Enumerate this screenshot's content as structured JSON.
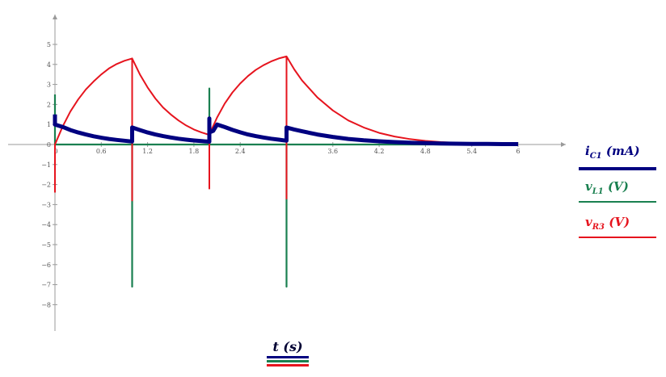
{
  "chart_data": {
    "type": "line",
    "xlim": [
      0,
      6
    ],
    "ylim": [
      -9.3,
      6.4
    ],
    "x_ticks": [
      0.6,
      1.2,
      1.8,
      2.4,
      3.6,
      4.2,
      4.8,
      5.4,
      6
    ],
    "x_tick_labels": [
      "0.6",
      "1.2",
      "1.8",
      "2.4",
      "3.6",
      "4.2",
      "4.8",
      "5.4",
      "6"
    ],
    "y_ticks": [
      5,
      4,
      3,
      2,
      1,
      0,
      -1,
      -2,
      -3,
      -4,
      -5,
      -6,
      -7,
      -8
    ],
    "y_tick_labels": [
      "5",
      "4",
      "3",
      "2",
      "1",
      "0",
      "−1",
      "−2",
      "−3",
      "−4",
      "−5",
      "−6",
      "−7",
      "−8"
    ],
    "origin_label": "0",
    "grid": false,
    "legend_position": "right",
    "xlabel": {
      "var": "t",
      "unit": "s"
    },
    "series": [
      {
        "name_var": "i",
        "name_sub": "C1",
        "unit": "mA",
        "color": "#000080",
        "points": [
          [
            0,
            1.5
          ],
          [
            0,
            1.0
          ],
          [
            0.1,
            0.88
          ],
          [
            0.2,
            0.72
          ],
          [
            0.3,
            0.6
          ],
          [
            0.4,
            0.5
          ],
          [
            0.5,
            0.41
          ],
          [
            0.6,
            0.34
          ],
          [
            0.7,
            0.28
          ],
          [
            0.8,
            0.23
          ],
          [
            0.9,
            0.19
          ],
          [
            1.0,
            0.15
          ],
          [
            1.0,
            0.85
          ],
          [
            1.1,
            0.72
          ],
          [
            1.2,
            0.6
          ],
          [
            1.3,
            0.5
          ],
          [
            1.4,
            0.42
          ],
          [
            1.5,
            0.35
          ],
          [
            1.6,
            0.29
          ],
          [
            1.7,
            0.24
          ],
          [
            1.8,
            0.2
          ],
          [
            1.9,
            0.17
          ],
          [
            2.0,
            0.14
          ],
          [
            2.0,
            1.3
          ],
          [
            2.0,
            0.6
          ],
          [
            2.05,
            0.68
          ],
          [
            2.1,
            1.0
          ],
          [
            2.2,
            0.87
          ],
          [
            2.3,
            0.73
          ],
          [
            2.4,
            0.61
          ],
          [
            2.5,
            0.5
          ],
          [
            2.6,
            0.42
          ],
          [
            2.7,
            0.35
          ],
          [
            2.8,
            0.29
          ],
          [
            2.9,
            0.24
          ],
          [
            3.0,
            0.19
          ],
          [
            3.0,
            0.85
          ],
          [
            3.1,
            0.75
          ],
          [
            3.2,
            0.66
          ],
          [
            3.4,
            0.5
          ],
          [
            3.6,
            0.38
          ],
          [
            3.8,
            0.28
          ],
          [
            4.0,
            0.21
          ],
          [
            4.2,
            0.16
          ],
          [
            4.4,
            0.12
          ],
          [
            4.6,
            0.09
          ],
          [
            4.8,
            0.07
          ],
          [
            5.0,
            0.05
          ],
          [
            5.2,
            0.04
          ],
          [
            5.4,
            0.03
          ],
          [
            5.6,
            0.03
          ],
          [
            5.8,
            0.02
          ],
          [
            6.0,
            0.02
          ]
        ]
      },
      {
        "name_var": "v",
        "name_sub": "L1",
        "unit": "V",
        "color": "#1a8050",
        "points": [
          [
            0,
            2.5
          ],
          [
            0,
            0
          ],
          [
            1.0,
            0
          ],
          [
            1.0,
            -7.1
          ],
          [
            1.0,
            0
          ],
          [
            2.0,
            0
          ],
          [
            2.0,
            2.8
          ],
          [
            2.0,
            0
          ],
          [
            3.0,
            0
          ],
          [
            3.0,
            -7.1
          ],
          [
            3.0,
            0
          ],
          [
            6.0,
            0
          ]
        ]
      },
      {
        "name_var": "v",
        "name_sub": "R3",
        "unit": "V",
        "color": "#e6141e",
        "points": [
          [
            0,
            -2.4
          ],
          [
            0,
            0
          ],
          [
            0.1,
            0.9
          ],
          [
            0.2,
            1.65
          ],
          [
            0.3,
            2.25
          ],
          [
            0.4,
            2.75
          ],
          [
            0.5,
            3.15
          ],
          [
            0.6,
            3.5
          ],
          [
            0.7,
            3.8
          ],
          [
            0.8,
            4.02
          ],
          [
            0.9,
            4.18
          ],
          [
            1.0,
            4.3
          ],
          [
            1.0,
            -2.8
          ],
          [
            1.0,
            4.3
          ],
          [
            1.1,
            3.5
          ],
          [
            1.2,
            2.85
          ],
          [
            1.3,
            2.3
          ],
          [
            1.4,
            1.85
          ],
          [
            1.5,
            1.5
          ],
          [
            1.6,
            1.2
          ],
          [
            1.7,
            0.95
          ],
          [
            1.8,
            0.75
          ],
          [
            1.9,
            0.6
          ],
          [
            2.0,
            0.48
          ],
          [
            2.0,
            -2.2
          ],
          [
            2.0,
            0.5
          ],
          [
            2.1,
            1.35
          ],
          [
            2.2,
            2.05
          ],
          [
            2.3,
            2.6
          ],
          [
            2.4,
            3.05
          ],
          [
            2.5,
            3.42
          ],
          [
            2.6,
            3.72
          ],
          [
            2.7,
            3.96
          ],
          [
            2.8,
            4.15
          ],
          [
            2.9,
            4.3
          ],
          [
            3.0,
            4.4
          ],
          [
            3.0,
            -2.7
          ],
          [
            3.0,
            4.4
          ],
          [
            3.1,
            3.75
          ],
          [
            3.2,
            3.2
          ],
          [
            3.4,
            2.35
          ],
          [
            3.6,
            1.7
          ],
          [
            3.8,
            1.2
          ],
          [
            4.0,
            0.85
          ],
          [
            4.2,
            0.58
          ],
          [
            4.4,
            0.4
          ],
          [
            4.6,
            0.27
          ],
          [
            4.8,
            0.18
          ],
          [
            5.0,
            0.12
          ],
          [
            5.2,
            0.08
          ],
          [
            5.4,
            0.05
          ],
          [
            5.6,
            0.04
          ],
          [
            5.8,
            0.03
          ],
          [
            6.0,
            0.02
          ]
        ]
      }
    ]
  }
}
